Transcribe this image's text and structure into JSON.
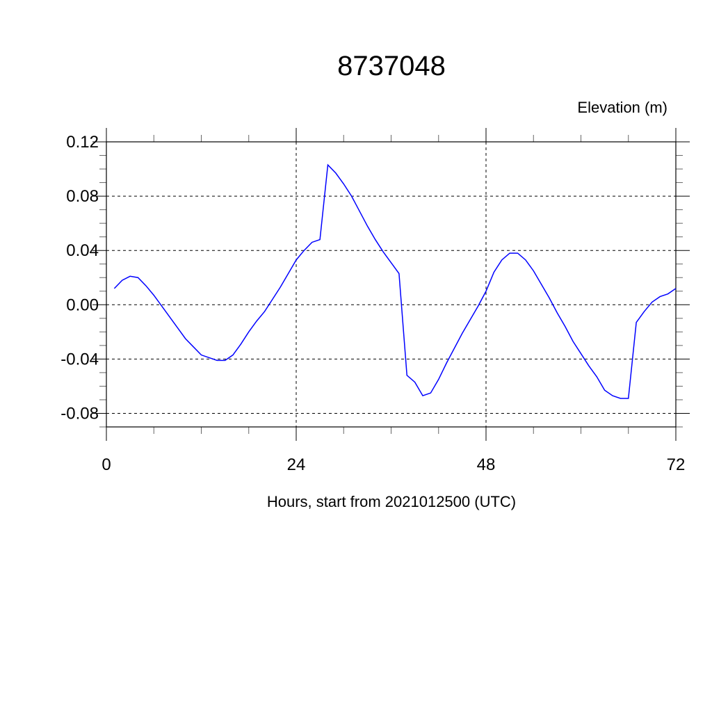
{
  "chart_data": {
    "type": "line",
    "title": "8737048",
    "ylabel": "Elevation (m)",
    "xlabel": "Hours, start from 2021012500 (UTC)",
    "xlim": [
      0,
      72
    ],
    "ylim": [
      -0.09,
      0.12
    ],
    "x_ticks": [
      0,
      24,
      48,
      72
    ],
    "x_tick_labels": [
      "0",
      "24",
      "48",
      "72"
    ],
    "y_ticks": [
      -0.08,
      -0.04,
      0.0,
      0.04,
      0.08,
      0.12
    ],
    "y_tick_labels": [
      "-0.08",
      "-0.04",
      "0.00",
      "0.04",
      "0.08",
      "0.12"
    ],
    "grid": true,
    "line_color": "#0000ff",
    "series": [
      {
        "x": [
          1,
          2,
          3,
          4,
          5,
          6,
          7,
          8,
          9,
          10,
          11,
          12,
          13,
          14,
          15,
          16,
          17,
          18,
          19,
          20,
          21,
          22,
          23,
          24,
          25,
          26,
          27,
          28,
          29,
          30,
          31,
          32,
          33,
          34,
          35,
          36,
          37,
          38,
          39,
          40,
          41,
          42,
          43,
          44,
          45,
          46,
          47,
          48,
          49,
          50,
          51,
          52,
          53,
          54,
          55,
          56,
          57,
          58,
          59,
          60,
          61,
          62,
          63,
          64,
          65,
          66,
          67,
          68,
          69,
          70,
          71,
          72
        ],
        "values": [
          0.012,
          0.018,
          0.021,
          0.02,
          0.014,
          0.007,
          -0.001,
          -0.009,
          -0.017,
          -0.025,
          -0.031,
          -0.037,
          -0.039,
          -0.041,
          -0.041,
          -0.037,
          -0.029,
          -0.02,
          -0.012,
          -0.005,
          0.004,
          0.013,
          0.023,
          0.033,
          0.04,
          0.046,
          0.048,
          0.103,
          0.097,
          0.089,
          0.08,
          0.069,
          0.058,
          0.048,
          0.039,
          0.031,
          0.023,
          -0.052,
          -0.057,
          -0.067,
          -0.065,
          -0.055,
          -0.043,
          -0.032,
          -0.021,
          -0.011,
          -0.001,
          0.01,
          0.024,
          0.033,
          0.038,
          0.038,
          0.033,
          0.025,
          0.015,
          0.005,
          -0.006,
          -0.016,
          -0.027,
          -0.036,
          -0.045,
          -0.053,
          -0.063,
          -0.067,
          -0.069,
          -0.069,
          -0.013,
          -0.005,
          0.002,
          0.006,
          0.008,
          0.012
        ]
      }
    ]
  }
}
